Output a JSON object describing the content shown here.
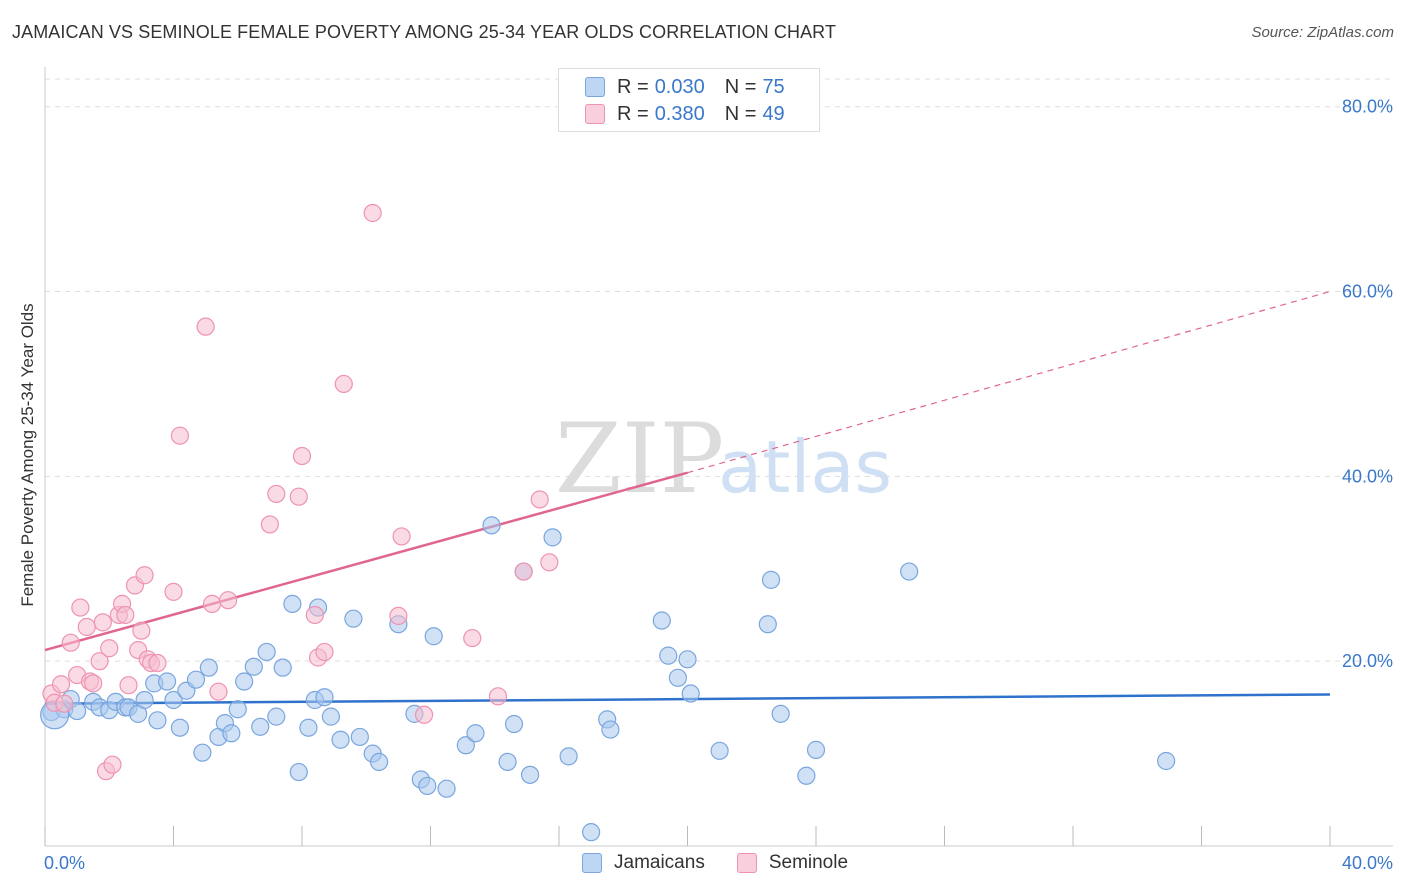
{
  "title": "JAMAICAN VS SEMINOLE FEMALE POVERTY AMONG 25-34 YEAR OLDS CORRELATION CHART",
  "source": "Source: ZipAtlas.com",
  "watermark": {
    "zip": "ZIP",
    "atlas": "atlas"
  },
  "colors": {
    "blue_fill": "#a9c8ef",
    "blue_stroke": "#7aa6de",
    "blue_line": "#2f72cc",
    "pink_fill": "#f6bdd0",
    "pink_stroke": "#ee93b1",
    "pink_line": "#e0668f",
    "axis_text": "#3a78c9",
    "grid": "#dddddd"
  },
  "legend_top": [
    {
      "r_label": "R = ",
      "r_value": "0.030",
      "n_label": "N = ",
      "n_value": "75",
      "series": "jamaicans"
    },
    {
      "r_label": "R = ",
      "r_value": "0.380",
      "n_label": "N = ",
      "n_value": "49",
      "series": "seminole"
    }
  ],
  "chart_data": {
    "type": "scatter",
    "title": "JAMAICAN VS SEMINOLE FEMALE POVERTY AMONG 25-34 YEAR OLDS CORRELATION CHART",
    "xlabel": "",
    "ylabel": "Female Poverty Among 25-34 Year Olds",
    "xlim": [
      0,
      40
    ],
    "ylim": [
      0,
      83
    ],
    "x_tick_labels": [
      "0.0%",
      "40.0%"
    ],
    "y_ticks": [
      20,
      40,
      60,
      80
    ],
    "y_tick_labels": [
      "20.0%",
      "40.0%",
      "60.0%",
      "80.0%"
    ],
    "grid": true,
    "legend_position": "bottom-center",
    "series": [
      {
        "name": "Jamaicans",
        "r": 0.03,
        "n": 75,
        "trend": {
          "x0": 0,
          "y0": 15.4,
          "x1": 40,
          "y1": 16.4,
          "style": "solid"
        },
        "points": [
          [
            0.2,
            14.5
          ],
          [
            0.6,
            14.8
          ],
          [
            0.8,
            15.9
          ],
          [
            1.0,
            14.6
          ],
          [
            1.5,
            15.6
          ],
          [
            1.7,
            15.0
          ],
          [
            2.0,
            14.7
          ],
          [
            2.2,
            15.6
          ],
          [
            2.5,
            15.0
          ],
          [
            2.6,
            15.0
          ],
          [
            2.9,
            14.3
          ],
          [
            3.1,
            15.8
          ],
          [
            3.4,
            17.6
          ],
          [
            3.5,
            13.6
          ],
          [
            3.8,
            17.8
          ],
          [
            4.0,
            15.8
          ],
          [
            4.2,
            12.8
          ],
          [
            4.4,
            16.8
          ],
          [
            4.7,
            18.0
          ],
          [
            4.9,
            10.1
          ],
          [
            5.1,
            19.3
          ],
          [
            5.4,
            11.8
          ],
          [
            5.6,
            13.3
          ],
          [
            5.8,
            12.2
          ],
          [
            6.0,
            14.8
          ],
          [
            6.2,
            17.8
          ],
          [
            6.5,
            19.4
          ],
          [
            6.7,
            12.9
          ],
          [
            6.9,
            21.0
          ],
          [
            7.2,
            14.0
          ],
          [
            7.4,
            19.3
          ],
          [
            7.7,
            26.2
          ],
          [
            7.9,
            8.0
          ],
          [
            8.2,
            12.8
          ],
          [
            8.4,
            15.8
          ],
          [
            8.5,
            25.8
          ],
          [
            8.7,
            16.1
          ],
          [
            8.9,
            14.0
          ],
          [
            9.2,
            11.5
          ],
          [
            9.6,
            24.6
          ],
          [
            9.8,
            11.8
          ],
          [
            10.2,
            10.0
          ],
          [
            10.4,
            9.1
          ],
          [
            11.0,
            24.0
          ],
          [
            11.5,
            14.3
          ],
          [
            11.7,
            7.2
          ],
          [
            11.9,
            6.5
          ],
          [
            12.1,
            22.7
          ],
          [
            12.5,
            6.2
          ],
          [
            13.1,
            10.9
          ],
          [
            13.4,
            12.2
          ],
          [
            13.9,
            34.7
          ],
          [
            14.4,
            9.1
          ],
          [
            14.6,
            13.2
          ],
          [
            14.9,
            29.7
          ],
          [
            15.1,
            7.7
          ],
          [
            15.8,
            33.4
          ],
          [
            16.3,
            9.7
          ],
          [
            17.0,
            1.5
          ],
          [
            17.5,
            13.7
          ],
          [
            17.6,
            12.6
          ],
          [
            19.2,
            24.4
          ],
          [
            19.4,
            20.6
          ],
          [
            19.7,
            18.2
          ],
          [
            20.0,
            20.2
          ],
          [
            20.1,
            16.5
          ],
          [
            21.0,
            10.3
          ],
          [
            22.5,
            24.0
          ],
          [
            22.6,
            28.8
          ],
          [
            22.9,
            14.3
          ],
          [
            23.7,
            7.6
          ],
          [
            24.0,
            10.4
          ],
          [
            26.9,
            29.7
          ],
          [
            34.9,
            9.2
          ],
          [
            0.3,
            14.2
          ]
        ]
      },
      {
        "name": "Seminole",
        "r": 0.38,
        "n": 49,
        "trend": {
          "x0": 0,
          "y0": 21.2,
          "x1": 20,
          "y1": 40.4,
          "style": "solid",
          "ext_x1": 40,
          "ext_y1": 60.0,
          "ext_style": "dashed"
        },
        "points": [
          [
            0.2,
            16.5
          ],
          [
            0.3,
            15.5
          ],
          [
            0.5,
            17.5
          ],
          [
            0.6,
            15.4
          ],
          [
            0.8,
            22.0
          ],
          [
            1.0,
            18.5
          ],
          [
            1.1,
            25.8
          ],
          [
            1.3,
            23.7
          ],
          [
            1.4,
            17.8
          ],
          [
            1.5,
            17.6
          ],
          [
            1.7,
            20.0
          ],
          [
            1.8,
            24.2
          ],
          [
            1.9,
            8.1
          ],
          [
            2.0,
            21.4
          ],
          [
            2.1,
            8.8
          ],
          [
            2.3,
            25.0
          ],
          [
            2.4,
            26.2
          ],
          [
            2.5,
            25.0
          ],
          [
            2.6,
            17.4
          ],
          [
            2.8,
            28.2
          ],
          [
            2.9,
            21.2
          ],
          [
            3.0,
            23.3
          ],
          [
            3.1,
            29.3
          ],
          [
            3.2,
            20.2
          ],
          [
            3.3,
            19.8
          ],
          [
            3.5,
            19.8
          ],
          [
            4.0,
            27.5
          ],
          [
            4.2,
            44.4
          ],
          [
            5.0,
            56.2
          ],
          [
            5.2,
            26.2
          ],
          [
            5.4,
            16.7
          ],
          [
            5.7,
            26.6
          ],
          [
            7.0,
            34.8
          ],
          [
            7.2,
            38.1
          ],
          [
            7.9,
            37.8
          ],
          [
            8.0,
            42.2
          ],
          [
            8.4,
            25.0
          ],
          [
            8.5,
            20.4
          ],
          [
            8.7,
            21.0
          ],
          [
            9.3,
            50.0
          ],
          [
            10.2,
            68.5
          ],
          [
            11.0,
            24.9
          ],
          [
            11.1,
            33.5
          ],
          [
            11.8,
            14.2
          ],
          [
            13.3,
            22.5
          ],
          [
            14.1,
            16.2
          ],
          [
            14.9,
            29.7
          ],
          [
            15.4,
            37.5
          ],
          [
            15.7,
            30.7
          ]
        ]
      }
    ]
  },
  "legend_bottom": [
    {
      "label": "Jamaicans",
      "series": "jamaicans"
    },
    {
      "label": "Seminole",
      "series": "seminole"
    }
  ]
}
